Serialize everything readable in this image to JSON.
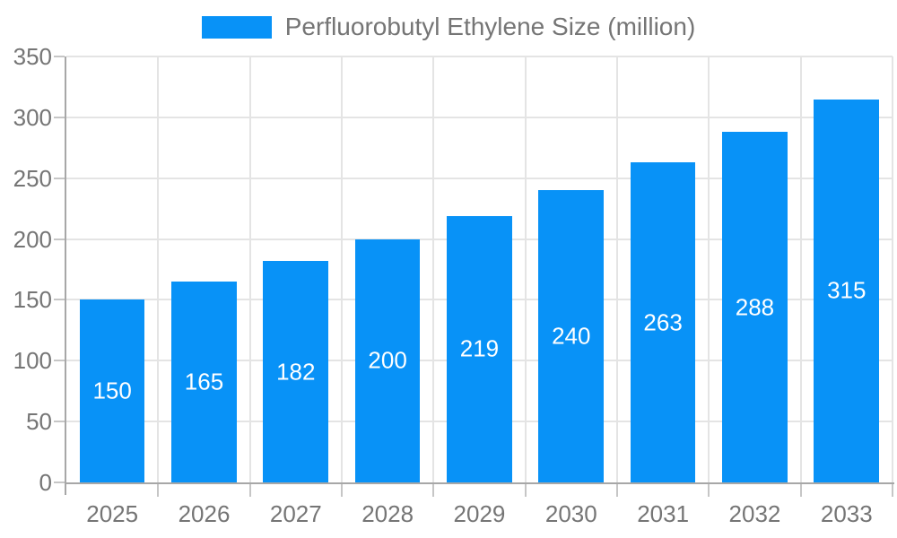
{
  "chart_data": {
    "type": "bar",
    "title": "",
    "legend_label": "Perfluorobutyl Ethylene Size (million)",
    "legend_position": "top-center",
    "categories": [
      "2025",
      "2026",
      "2027",
      "2028",
      "2029",
      "2030",
      "2031",
      "2032",
      "2033"
    ],
    "values": [
      150,
      165,
      182,
      200,
      219,
      240,
      263,
      288,
      315
    ],
    "xlabel": "",
    "ylabel": "",
    "ylim": [
      0,
      350
    ],
    "ytick_step": 50,
    "yticks": [
      0,
      50,
      100,
      150,
      200,
      250,
      300,
      350
    ],
    "grid": true,
    "value_labels_inside_bars": true,
    "colors": {
      "bar": "#0892f7",
      "bar_value_label": "#ffffff",
      "axis_text": "#757575",
      "legend_text": "#757575",
      "gridline": "#e4e4e4",
      "axis_line": "#a7a7a7",
      "tick": "#c6c6c6",
      "background": "#ffffff"
    }
  }
}
